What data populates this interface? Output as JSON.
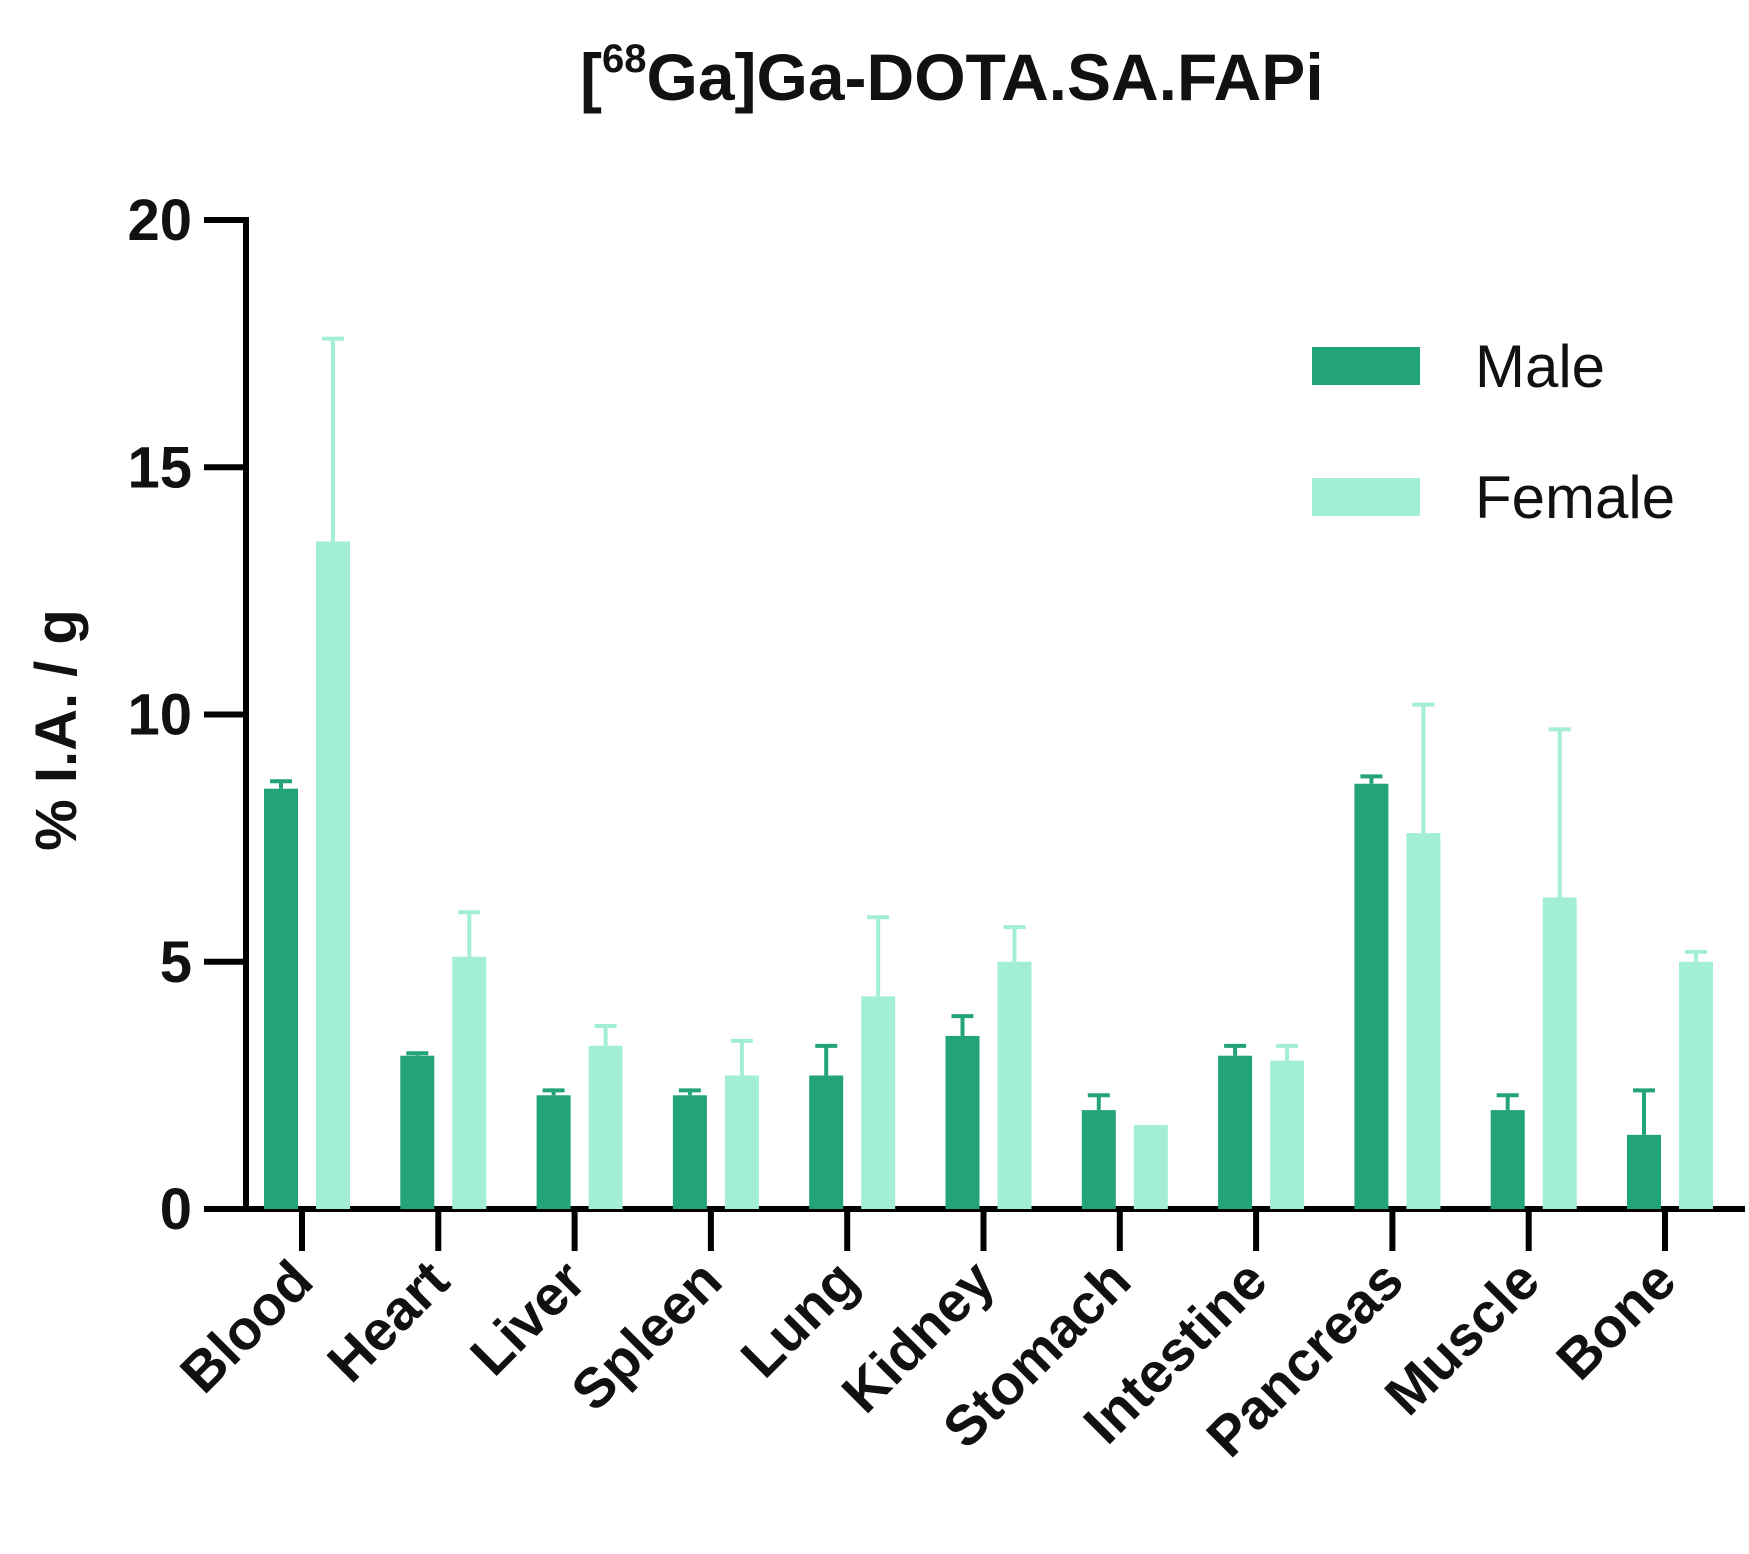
{
  "chart_data": {
    "type": "bar",
    "title": {
      "bracket_open": "[",
      "superscript": "68",
      "main": "Ga]Ga-DOTA.SA.FAPi"
    },
    "xlabel": "",
    "ylabel": "% I.A. / g",
    "ylim": [
      0,
      20
    ],
    "yticks": [
      "0",
      "5",
      "10",
      "15",
      "20"
    ],
    "categories": [
      "Blood",
      "Heart",
      "Liver",
      "Spleen",
      "Lung",
      "Kidney",
      "Stomach",
      "Intestine",
      "Pancreas",
      "Muscle",
      "Bone"
    ],
    "series": [
      {
        "name": "Male",
        "color": "#22a37a",
        "values": [
          8.5,
          3.1,
          2.3,
          2.3,
          2.7,
          3.5,
          2.0,
          3.1,
          8.6,
          2.0,
          1.5
        ],
        "errors": [
          0.15,
          0.05,
          0.1,
          0.1,
          0.6,
          0.4,
          0.3,
          0.2,
          0.15,
          0.3,
          0.9
        ]
      },
      {
        "name": "Female",
        "color": "#a2eed6",
        "values": [
          13.5,
          5.1,
          3.3,
          2.7,
          4.3,
          5.0,
          1.7,
          3.0,
          7.6,
          6.3,
          5.0
        ],
        "errors": [
          4.1,
          0.9,
          0.4,
          0.7,
          1.6,
          0.7,
          0.0,
          0.3,
          2.6,
          3.4,
          0.2
        ]
      }
    ],
    "legend_position": "top-right",
    "grid": false
  }
}
